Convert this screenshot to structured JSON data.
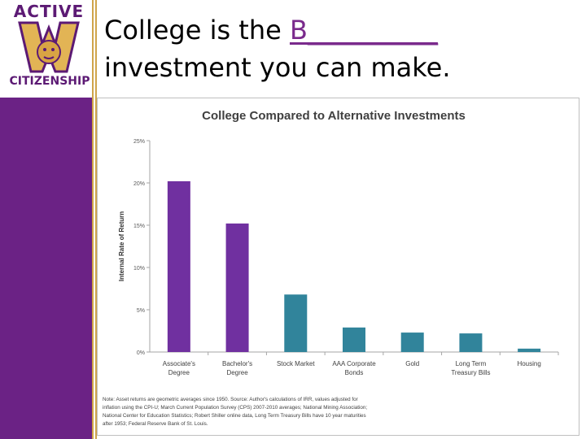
{
  "logo": {
    "top_text": "ACTIVE",
    "bottom_text": "CITIZENSHIP",
    "mark_letter": "W"
  },
  "slide": {
    "title_line1_prefix": "College is the ",
    "title_blank": "B__________",
    "title_line2": "investment you can make."
  },
  "colors": {
    "purple": "#7030a0",
    "teal": "#31849b",
    "sidebar": "#6b2285",
    "gold": "#cfa44a"
  },
  "chart_data": {
    "type": "bar",
    "title": "College Compared to Alternative Investments",
    "ylabel": "Internal Rate of Return",
    "xlabel": "",
    "ylim": [
      0,
      25
    ],
    "yticks": [
      "0%",
      "5%",
      "10%",
      "15%",
      "20%",
      "25%"
    ],
    "ytick_values": [
      0,
      5,
      10,
      15,
      20,
      25
    ],
    "categories": [
      [
        "Associate's",
        "Degree"
      ],
      [
        "Bachelor's",
        "Degree"
      ],
      [
        "Stock Market"
      ],
      [
        "AAA Corporate",
        "Bonds"
      ],
      [
        "Gold"
      ],
      [
        "Long Term",
        "Treasury Bills"
      ],
      [
        "Housing"
      ]
    ],
    "values": [
      20.2,
      15.2,
      6.8,
      2.9,
      2.3,
      2.2,
      0.4
    ],
    "bar_colors": [
      "#7030a0",
      "#7030a0",
      "#31849b",
      "#31849b",
      "#31849b",
      "#31849b",
      "#31849b"
    ],
    "grid": false,
    "note": "Note: Asset returns are geometric averages since 1950. Source: Author's calculations of IRR, values adjusted for inflation using the CPI-U; March Current Population Survey (CPS) 2007-2010 averages; National Mining Association; National Center for Education Statistics; Robert Shiller online data, Long Term Treasury Bills have 10 year maturities after 1953; Federal Reserve Bank of St. Louis."
  }
}
